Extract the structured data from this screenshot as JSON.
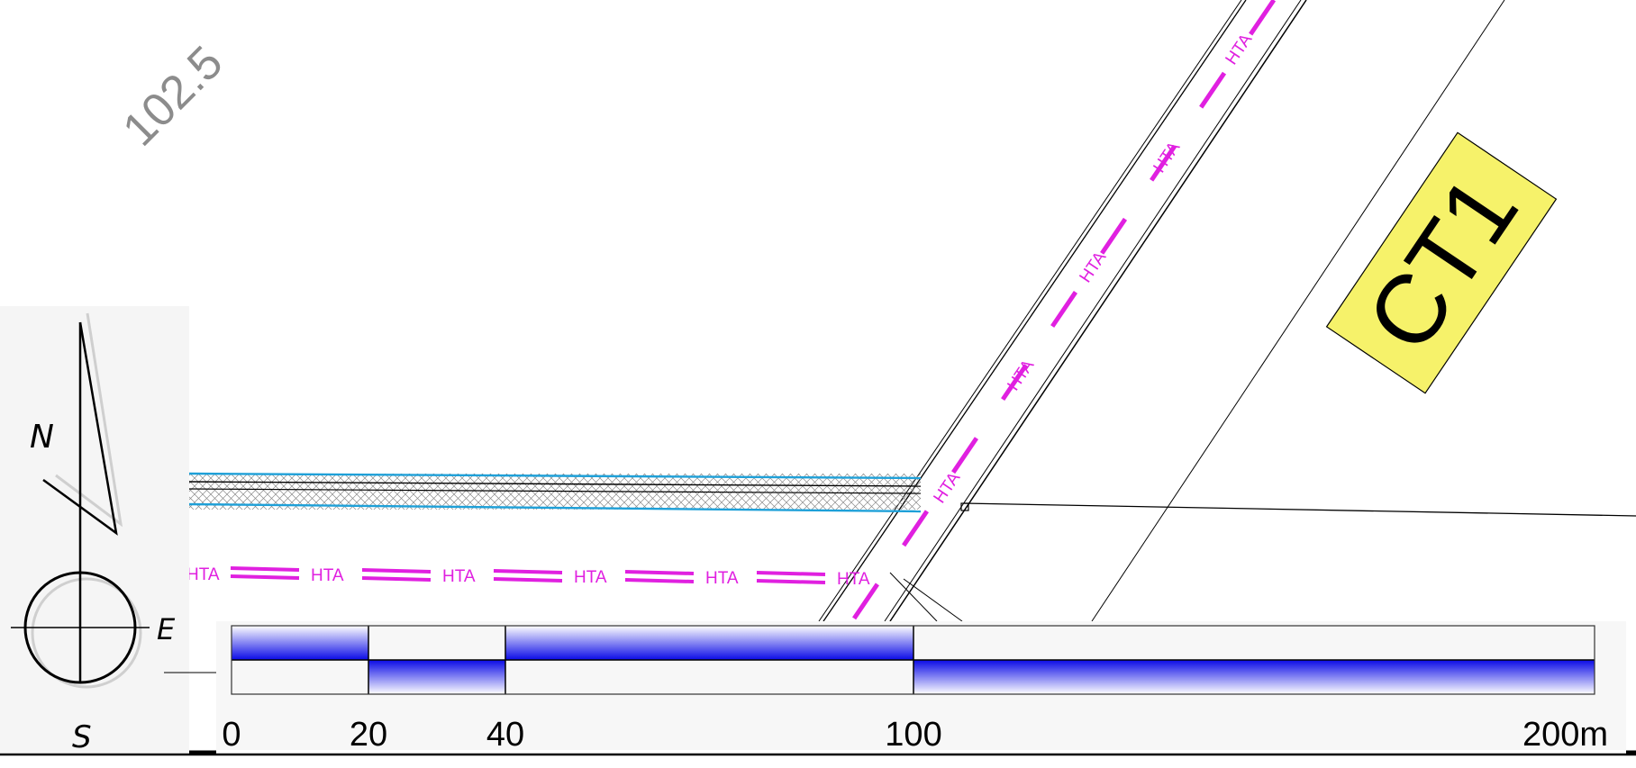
{
  "elevation_label": "102.5",
  "parcel_label": "CT1",
  "network_label": "HTA",
  "compass": {
    "north": "N",
    "east": "E",
    "south": "S"
  },
  "scale_bar": {
    "ticks": [
      "0",
      "20",
      "40",
      "100",
      "200m"
    ]
  },
  "colors": {
    "network": "#e020e0",
    "road_edge": "#1ea0d8",
    "parcel_fill": "#f6f26a",
    "scale_blue": "#1010e0"
  }
}
